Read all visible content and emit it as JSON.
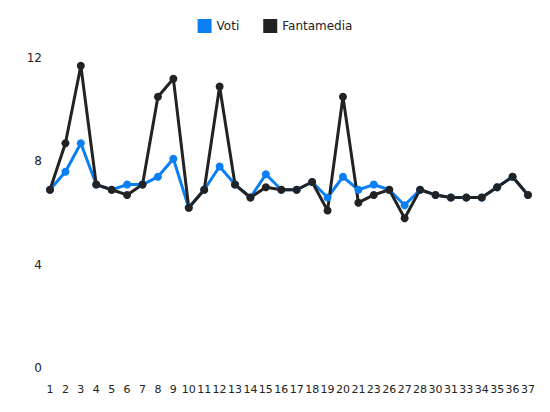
{
  "chart_data": {
    "type": "line",
    "categories": [
      "1",
      "2",
      "3",
      "4",
      "5",
      "6",
      "7",
      "8",
      "9",
      "10",
      "11",
      "12",
      "13",
      "14",
      "15",
      "16",
      "17",
      "18",
      "19",
      "20",
      "21",
      "23",
      "26",
      "27",
      "28",
      "30",
      "31",
      "33",
      "34",
      "35",
      "36",
      "37"
    ],
    "series": [
      {
        "name": "Voti",
        "color": "#0a7ff2",
        "marker": "circle",
        "values": [
          6.9,
          7.6,
          8.7,
          7.1,
          6.9,
          7.1,
          7.1,
          7.4,
          8.1,
          6.2,
          6.9,
          7.8,
          7.1,
          6.6,
          7.5,
          6.9,
          6.9,
          7.2,
          6.6,
          7.4,
          6.9,
          7.1,
          6.9,
          6.3,
          6.9,
          6.7,
          6.6,
          6.6,
          6.6,
          7.0,
          7.4,
          6.7
        ]
      },
      {
        "name": "Fantamedia",
        "color": "#222222",
        "marker": "circle",
        "values": [
          6.9,
          8.7,
          11.7,
          7.1,
          6.9,
          6.7,
          7.1,
          10.5,
          11.2,
          6.2,
          6.9,
          10.9,
          7.1,
          6.6,
          7.0,
          6.9,
          6.9,
          7.2,
          6.1,
          10.5,
          6.4,
          6.7,
          6.9,
          5.8,
          6.9,
          6.7,
          6.6,
          6.6,
          6.6,
          7.0,
          7.4,
          6.7
        ]
      }
    ],
    "ylim": [
      0,
      12
    ],
    "yticks": [
      0,
      4,
      8,
      12
    ],
    "grid": false,
    "legend": "top"
  }
}
